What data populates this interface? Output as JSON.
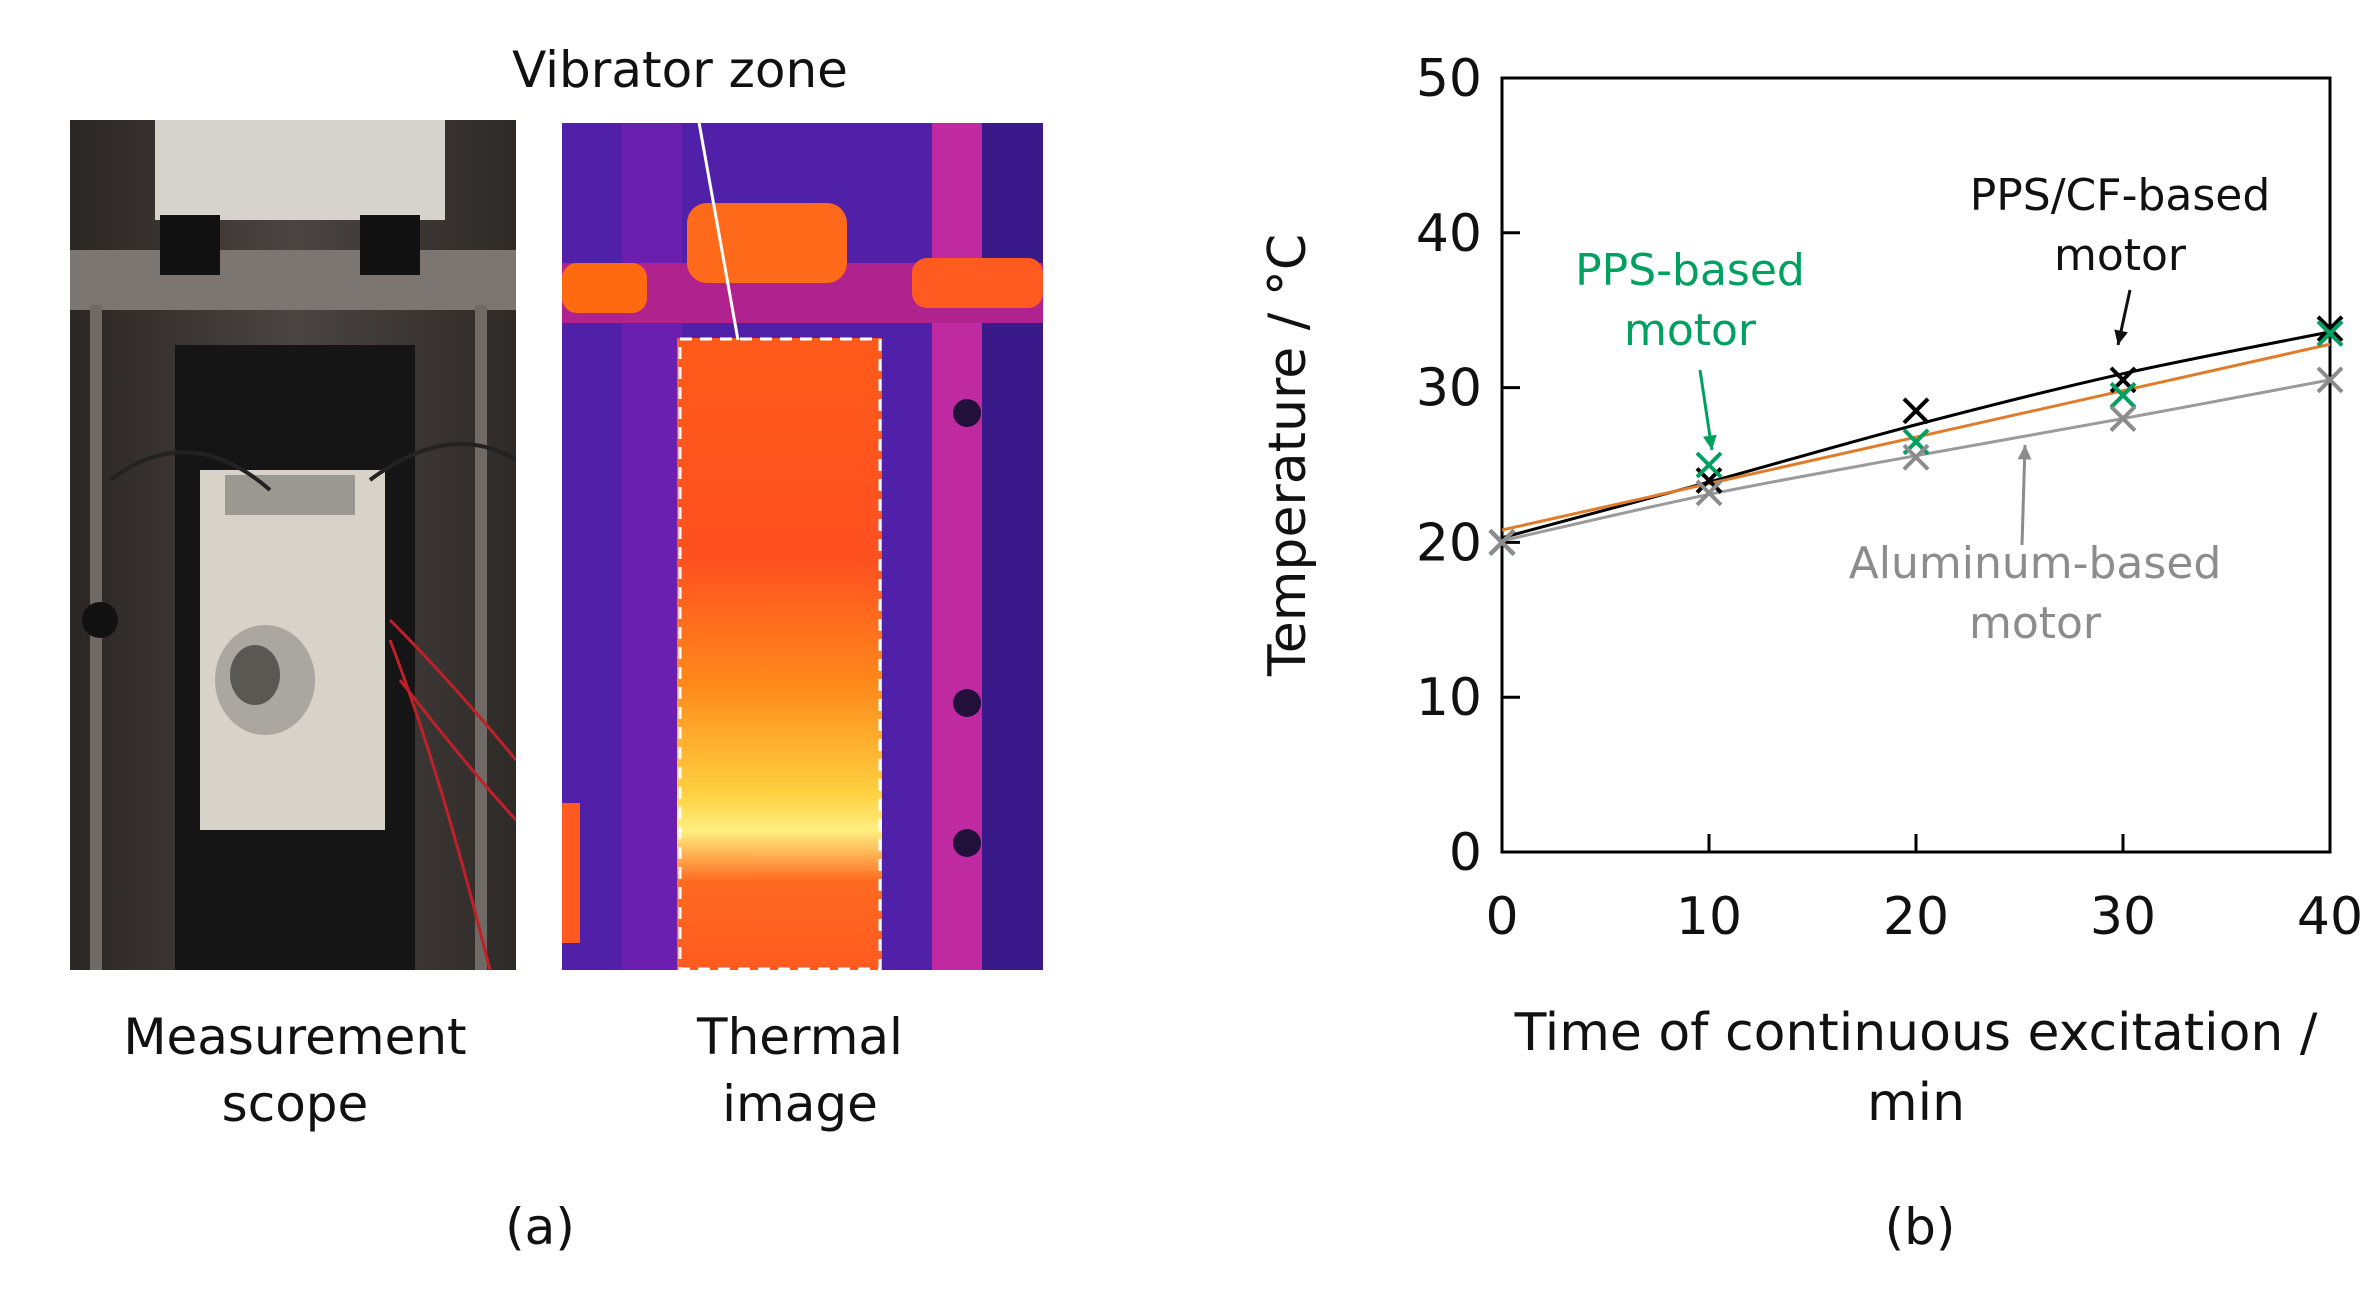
{
  "panel_a": {
    "photo_caption_line1": "Measurement",
    "photo_caption_line2": "scope",
    "thermal_caption_line1": "Thermal",
    "thermal_caption_line2": "image",
    "zone_label": "Vibrator zone",
    "panel_label": "(a)"
  },
  "panel_b": {
    "panel_label": "(b)"
  },
  "colors": {
    "black_series": "#000000",
    "orange_fit": "#e07b2a",
    "green_series": "#00a060",
    "gray_series": "#8c8c8c"
  },
  "chart_data": {
    "type": "scatter",
    "title": "",
    "xlabel_line1": "Time of continuous excitation /",
    "xlabel_line2": "min",
    "ylabel": "Temperature / °C",
    "xlim": [
      0,
      40
    ],
    "ylim": [
      0,
      50
    ],
    "x_ticks": [
      0,
      10,
      20,
      30,
      40
    ],
    "y_ticks": [
      0,
      10,
      20,
      30,
      40,
      50
    ],
    "x_tick_labels": [
      "0",
      "10",
      "20",
      "30",
      "40"
    ],
    "y_tick_labels": [
      "0",
      "10",
      "20",
      "30",
      "40",
      "50"
    ],
    "series": [
      {
        "name": "PPS/CF-based motor",
        "label_line1": "PPS/CF-based",
        "label_line2": "motor",
        "marker": "x",
        "x": [
          0,
          10,
          20,
          30,
          40
        ],
        "y": [
          20,
          24,
          28.5,
          30.5,
          33.8
        ]
      },
      {
        "name": "PPS-based motor",
        "label_line1": "PPS-based",
        "label_line2": "motor",
        "marker": "x",
        "x": [
          0,
          10,
          20,
          30,
          40
        ],
        "y": [
          20,
          25,
          26.5,
          29.5,
          33.5
        ]
      },
      {
        "name": "Aluminum-based motor",
        "label_line1": "Aluminum-based",
        "label_line2": "motor",
        "marker": "x",
        "x": [
          0,
          10,
          20,
          30,
          40
        ],
        "y": [
          20,
          23.2,
          25.5,
          28,
          30.5
        ]
      }
    ],
    "fit_lines": [
      {
        "name": "PPS/CF fit",
        "x": [
          0,
          10,
          20,
          30,
          40
        ],
        "y": [
          20.3,
          23.9,
          27.6,
          30.9,
          33.6
        ]
      },
      {
        "name": "PPS fit",
        "x": [
          0,
          40
        ],
        "y": [
          20.8,
          32.8
        ]
      },
      {
        "name": "Aluminum fit",
        "x": [
          0,
          10,
          20,
          30,
          40
        ],
        "y": [
          20.1,
          23.1,
          25.6,
          28.0,
          30.5
        ]
      }
    ]
  }
}
